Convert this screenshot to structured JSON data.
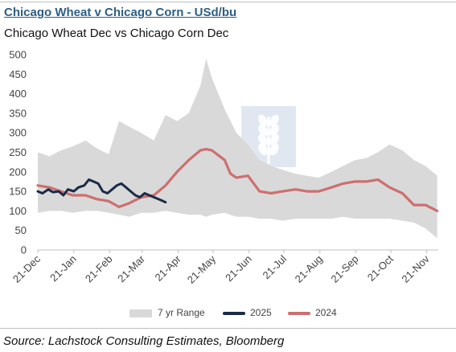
{
  "header": {
    "title": "Chicago Wheat v Chicago Corn - USd/bu",
    "subtitle": "Chicago Wheat Dec vs Chicago Corn Dec"
  },
  "footer": {
    "source": "Source: Lachstock Consulting Estimates, Bloomberg"
  },
  "colors": {
    "range": "#d9d9d9",
    "series_2025": "#1b2a47",
    "series_2024": "#cd6f6f",
    "title": "#2e5e85",
    "watermark": "#c9d4e3"
  },
  "chart_data": {
    "type": "line",
    "ylim": [
      0,
      500
    ],
    "yticks": [
      0,
      50,
      100,
      150,
      200,
      250,
      300,
      350,
      400,
      450,
      500
    ],
    "x_domain": [
      "2024-12-21",
      "2025-12-01"
    ],
    "xticks": [
      "21-Dec",
      "21-Jan",
      "21-Feb",
      "21-Mar",
      "21-Apr",
      "21-May",
      "21-Jun",
      "21-Jul",
      "21-Aug",
      "21-Sep",
      "21-Oct",
      "21-Nov"
    ],
    "xtick_dates": [
      "2024-12-21",
      "2025-01-21",
      "2025-02-21",
      "2025-03-21",
      "2025-04-21",
      "2025-05-21",
      "2025-06-21",
      "2025-07-21",
      "2025-08-21",
      "2025-09-21",
      "2025-10-21",
      "2025-11-21"
    ],
    "grid": false,
    "legend_position": "bottom",
    "range": {
      "name": "7 yr Range",
      "x": [
        "2024-12-21",
        "2024-12-31",
        "2025-01-10",
        "2025-01-20",
        "2025-01-31",
        "2025-02-10",
        "2025-02-20",
        "2025-03-01",
        "2025-03-10",
        "2025-03-20",
        "2025-03-31",
        "2025-04-10",
        "2025-04-20",
        "2025-04-30",
        "2025-05-10",
        "2025-05-15",
        "2025-05-20",
        "2025-05-31",
        "2025-06-10",
        "2025-06-20",
        "2025-06-30",
        "2025-07-10",
        "2025-07-20",
        "2025-07-31",
        "2025-08-10",
        "2025-08-20",
        "2025-08-31",
        "2025-09-10",
        "2025-09-20",
        "2025-09-30",
        "2025-10-10",
        "2025-10-20",
        "2025-10-31",
        "2025-11-10",
        "2025-11-20",
        "2025-11-30"
      ],
      "low": [
        95,
        100,
        100,
        95,
        100,
        100,
        95,
        90,
        85,
        95,
        95,
        100,
        95,
        90,
        90,
        85,
        90,
        95,
        85,
        85,
        80,
        80,
        75,
        80,
        80,
        80,
        80,
        85,
        80,
        80,
        80,
        80,
        75,
        70,
        55,
        30
      ],
      "high": [
        250,
        240,
        255,
        265,
        280,
        260,
        245,
        330,
        315,
        300,
        280,
        345,
        330,
        350,
        420,
        490,
        440,
        360,
        300,
        270,
        230,
        215,
        205,
        195,
        190,
        185,
        200,
        215,
        230,
        235,
        250,
        270,
        255,
        230,
        215,
        190
      ]
    },
    "series": [
      {
        "name": "2025",
        "x": [
          "2024-12-21",
          "2024-12-25",
          "2024-12-30",
          "2025-01-03",
          "2025-01-08",
          "2025-01-12",
          "2025-01-16",
          "2025-01-21",
          "2025-01-25",
          "2025-01-30",
          "2025-02-03",
          "2025-02-07",
          "2025-02-11",
          "2025-02-15",
          "2025-02-19",
          "2025-02-23",
          "2025-02-27",
          "2025-03-03",
          "2025-03-07",
          "2025-03-11",
          "2025-03-15",
          "2025-03-19",
          "2025-03-23",
          "2025-03-27",
          "2025-03-31",
          "2025-04-04",
          "2025-04-08",
          "2025-04-10"
        ],
        "values": [
          150,
          145,
          155,
          148,
          150,
          140,
          155,
          150,
          160,
          165,
          180,
          175,
          170,
          150,
          145,
          155,
          165,
          170,
          160,
          150,
          140,
          135,
          145,
          140,
          135,
          130,
          125,
          122
        ]
      },
      {
        "name": "2024",
        "x": [
          "2024-12-21",
          "2024-12-31",
          "2025-01-10",
          "2025-01-20",
          "2025-01-31",
          "2025-02-10",
          "2025-02-20",
          "2025-03-01",
          "2025-03-10",
          "2025-03-20",
          "2025-03-31",
          "2025-04-10",
          "2025-04-20",
          "2025-04-30",
          "2025-05-10",
          "2025-05-15",
          "2025-05-20",
          "2025-05-31",
          "2025-06-05",
          "2025-06-10",
          "2025-06-20",
          "2025-06-30",
          "2025-07-10",
          "2025-07-20",
          "2025-07-31",
          "2025-08-10",
          "2025-08-20",
          "2025-08-31",
          "2025-09-10",
          "2025-09-20",
          "2025-09-30",
          "2025-10-10",
          "2025-10-20",
          "2025-10-31",
          "2025-11-10",
          "2025-11-20",
          "2025-11-30"
        ],
        "values": [
          165,
          160,
          150,
          140,
          140,
          130,
          125,
          110,
          120,
          135,
          140,
          165,
          200,
          230,
          255,
          258,
          255,
          230,
          195,
          185,
          190,
          150,
          145,
          150,
          155,
          150,
          150,
          160,
          170,
          175,
          175,
          180,
          160,
          145,
          115,
          115,
          100
        ]
      }
    ]
  }
}
